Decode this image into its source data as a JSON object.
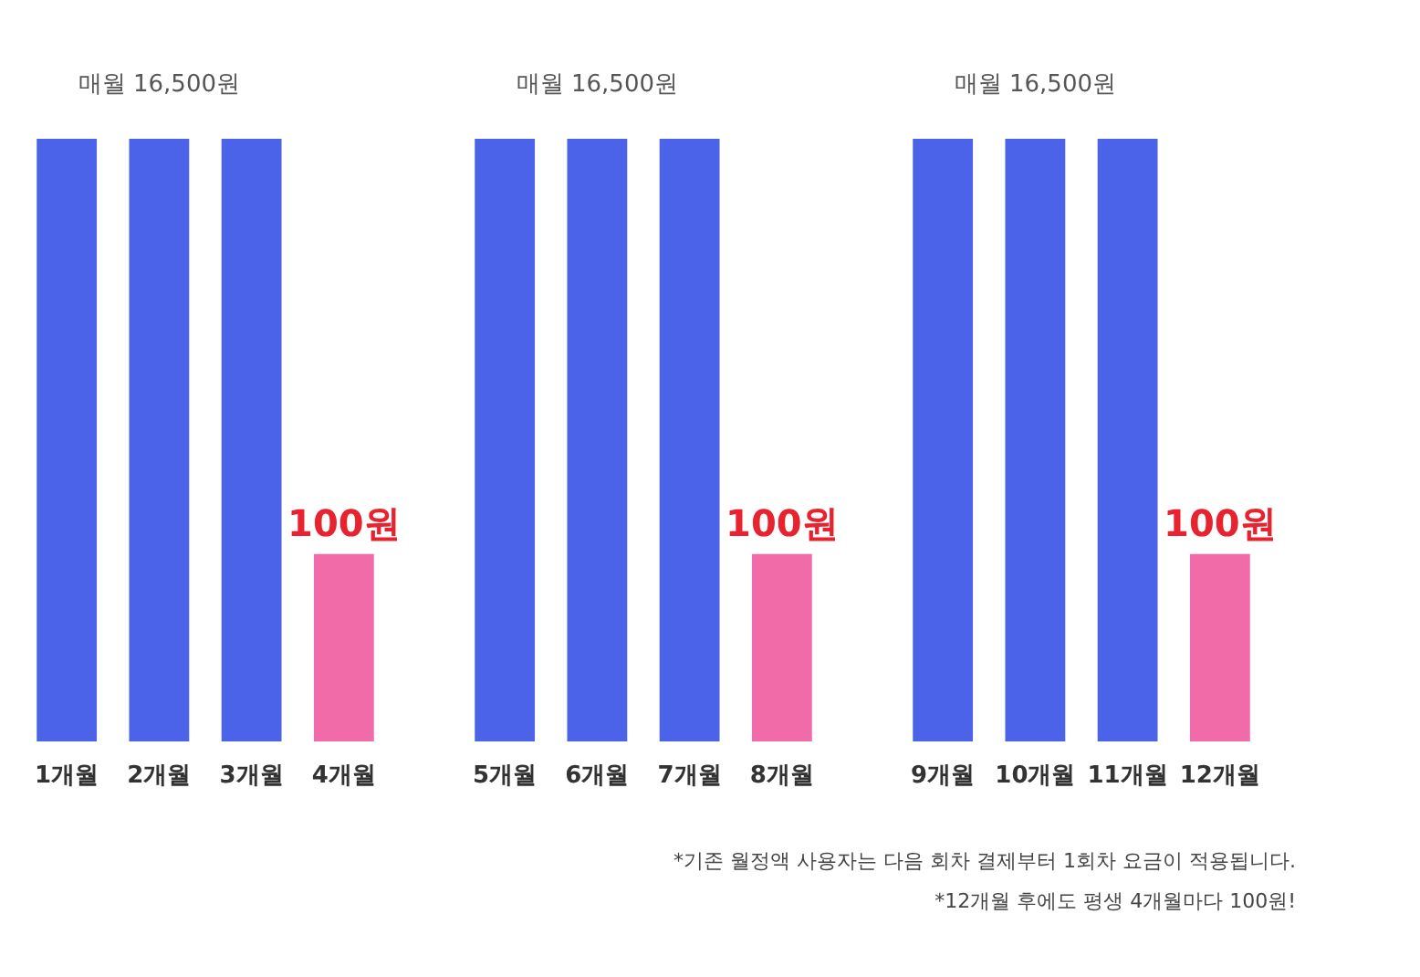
{
  "chart_data": [
    {
      "type": "bar",
      "log": "y",
      "ylim": [
        10,
        16500
      ],
      "tick_labels": "x",
      "categories": [
        "1개월",
        "2개월",
        "3개월",
        "4개월"
      ],
      "values": [
        16500,
        16500,
        16500,
        100
      ],
      "colors": [
        "#4a63e8",
        "#4a63e8",
        "#4a63e8",
        "#f06ba8"
      ],
      "value_labels": [
        null,
        "매월 16,500원",
        null,
        "100원"
      ],
      "grid": false
    },
    {
      "type": "bar",
      "log": "y",
      "ylim": [
        10,
        16500
      ],
      "tick_labels": "x",
      "categories": [
        "5개월",
        "6개월",
        "7개월",
        "8개월"
      ],
      "values": [
        16500,
        16500,
        16500,
        100
      ],
      "colors": [
        "#4a63e8",
        "#4a63e8",
        "#4a63e8",
        "#f06ba8"
      ],
      "value_labels": [
        null,
        "매월 16,500원",
        null,
        "100원"
      ],
      "grid": false
    },
    {
      "type": "bar",
      "log": "y",
      "ylim": [
        10,
        16500
      ],
      "tick_labels": "x",
      "categories": [
        "9개월",
        "10개월",
        "11개월",
        "12개월"
      ],
      "values": [
        16500,
        16500,
        16500,
        100
      ],
      "colors": [
        "#4a63e8",
        "#4a63e8",
        "#4a63e8",
        "#f06ba8"
      ],
      "value_labels": [
        null,
        "매월 16,500원",
        null,
        "100원"
      ],
      "grid": false,
      "annotations": [
        "*기존 월정액 사용자는 다음 회차 결제부터 1회차 요금이 적용됩니다.",
        "*12개월 후에도 평생 4개월마다 100원!"
      ]
    }
  ]
}
